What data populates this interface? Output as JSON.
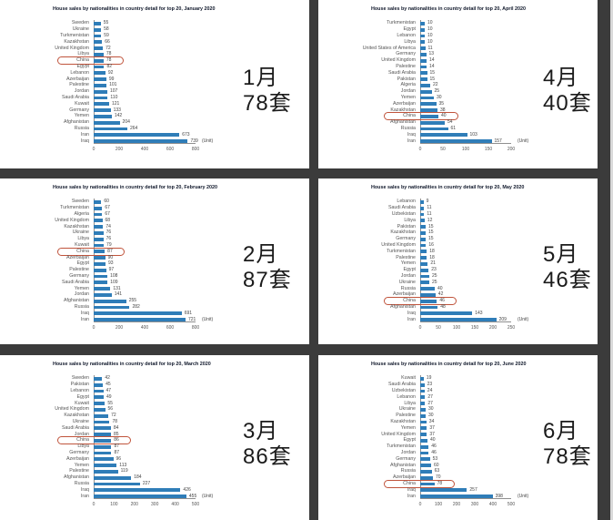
{
  "page": {
    "bar_color": "#2f7db8",
    "highlight_color": "#c0543c",
    "divider_color": "#3b3b3b",
    "background": "#ffffff"
  },
  "chart_data": [
    {
      "type": "bar",
      "orientation": "horizontal",
      "title": "House sales by nationalities in country detail for top 20, January 2020",
      "annotation_line1": "1月",
      "annotation_line2": "78套",
      "unit_label": "(Unit)",
      "highlight": "China",
      "categories": [
        "Sweden",
        "Ukraine",
        "Turkmenistan",
        "Kazakhstan",
        "United Kingdom",
        "Libya",
        "China",
        "Egypt",
        "Lebanon",
        "Azerbaijan",
        "Palestine",
        "Jordan",
        "Saudi Arabia",
        "Kuwait",
        "Germany",
        "Yemen",
        "Afghanistan",
        "Russia",
        "Iran",
        "Iraq"
      ],
      "values": [
        55,
        58,
        59,
        66,
        72,
        78,
        78,
        82,
        92,
        99,
        101,
        107,
        110,
        121,
        133,
        142,
        204,
        264,
        673,
        739
      ],
      "xlim": [
        0,
        800
      ],
      "xticks": [
        0,
        200,
        400,
        600,
        800
      ]
    },
    {
      "type": "bar",
      "orientation": "horizontal",
      "title": "House sales by nationalities in country detail for top 20, April 2020",
      "annotation_line1": "4月",
      "annotation_line2": "40套",
      "unit_label": "(Unit)",
      "highlight": "China",
      "categories": [
        "Turkmenistan",
        "Egypt",
        "Lebanon",
        "Libya",
        "United States of America",
        "Germany",
        "United Kingdom",
        "Palestine",
        "Saudi Arabia",
        "Pakistan",
        "Algeria",
        "Jordan",
        "Yemen",
        "Azerbaijan",
        "Kazakhstan",
        "China",
        "Afghanistan",
        "Russia",
        "Iraq",
        "Iran"
      ],
      "values": [
        10,
        10,
        10,
        10,
        11,
        13,
        14,
        14,
        15,
        15,
        22,
        25,
        30,
        35,
        38,
        40,
        54,
        61,
        103,
        157
      ],
      "xlim": [
        0,
        200
      ],
      "xticks": [
        0,
        50,
        100,
        150,
        200
      ]
    },
    {
      "type": "bar",
      "orientation": "horizontal",
      "title": "House sales by nationalities in country detail for top 20, February 2020",
      "annotation_line1": "2月",
      "annotation_line2": "87套",
      "unit_label": "(Unit)",
      "highlight": "China",
      "categories": [
        "Sweden",
        "Turkmenistan",
        "Algeria",
        "United Kingdom",
        "Kazakhstan",
        "Ukraine",
        "Libya",
        "Kuwait",
        "China",
        "Azerbaijan",
        "Egypt",
        "Palestine",
        "Germany",
        "Saudi Arabia",
        "Yemen",
        "Jordan",
        "Afghanistan",
        "Russia",
        "Iraq",
        "Iran"
      ],
      "values": [
        60,
        67,
        67,
        68,
        74,
        76,
        76,
        79,
        87,
        90,
        93,
        97,
        108,
        109,
        131,
        141,
        255,
        282,
        691,
        721
      ],
      "xlim": [
        0,
        800
      ],
      "xticks": [
        0,
        200,
        400,
        600,
        800
      ]
    },
    {
      "type": "bar",
      "orientation": "horizontal",
      "title": "House sales by nationalities in country detail for top 20, May 2020",
      "annotation_line1": "5月",
      "annotation_line2": "46套",
      "unit_label": "(Unit)",
      "highlight": "China",
      "categories": [
        "Lebanon",
        "Saudi Arabia",
        "Uzbekistan",
        "Libya",
        "Pakistan",
        "Kazakhstan",
        "Germany",
        "United Kingdom",
        "Turkmenistan",
        "Palestine",
        "Yemen",
        "Egypt",
        "Jordan",
        "Ukraine",
        "Russia",
        "Azerbaijan",
        "China",
        "Afghanistan",
        "Iraq",
        "Iran"
      ],
      "values": [
        9,
        11,
        11,
        12,
        15,
        15,
        15,
        16,
        18,
        18,
        21,
        23,
        25,
        25,
        40,
        42,
        46,
        48,
        143,
        209
      ],
      "xlim": [
        0,
        250
      ],
      "xticks": [
        0,
        50,
        100,
        150,
        200,
        250
      ]
    },
    {
      "type": "bar",
      "orientation": "horizontal",
      "title": "House sales by nationalities in country detail for top 20, March 2020",
      "annotation_line1": "3月",
      "annotation_line2": "86套",
      "unit_label": "(Unit)",
      "highlight": "China",
      "categories": [
        "Sweden",
        "Pakistan",
        "Lebanon",
        "Egypt",
        "Kuwait",
        "United Kingdom",
        "Kazakhstan",
        "Ukraine",
        "Saudi Arabia",
        "Jordan",
        "China",
        "Libya",
        "Germany",
        "Azerbaijan",
        "Yemen",
        "Palestine",
        "Afghanistan",
        "Russia",
        "Iraq",
        "Iran"
      ],
      "values": [
        42,
        45,
        47,
        49,
        55,
        56,
        72,
        78,
        84,
        85,
        86,
        87,
        87,
        96,
        113,
        119,
        184,
        227,
        426,
        455
      ],
      "xlim": [
        0,
        500
      ],
      "xticks": [
        0,
        100,
        200,
        300,
        400,
        500
      ]
    },
    {
      "type": "bar",
      "orientation": "horizontal",
      "title": "House sales by nationalities in country detail for top 20, June 2020",
      "annotation_line1": "6月",
      "annotation_line2": "78套",
      "unit_label": "(Unit)",
      "highlight": "China",
      "categories": [
        "Kuwait",
        "Saudi Arabia",
        "Uzbekistan",
        "Lebanon",
        "Libya",
        "Ukraine",
        "Palestine",
        "Kazakhstan",
        "Yemen",
        "United Kingdom",
        "Egypt",
        "Turkmenistan",
        "Jordan",
        "Germany",
        "Afghanistan",
        "Russia",
        "Azerbaijan",
        "China",
        "Iraq",
        "Iran"
      ],
      "values": [
        19,
        23,
        24,
        27,
        27,
        30,
        30,
        34,
        37,
        37,
        40,
        46,
        46,
        53,
        60,
        63,
        70,
        78,
        257,
        398
      ],
      "xlim": [
        0,
        500
      ],
      "xticks": [
        0,
        100,
        200,
        300,
        400,
        500
      ]
    }
  ]
}
